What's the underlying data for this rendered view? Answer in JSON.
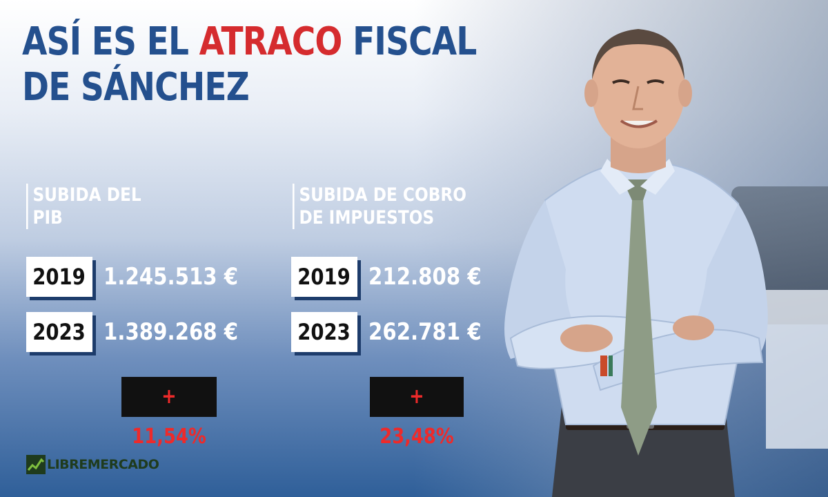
{
  "headline": {
    "part1": "ASÍ ES EL ",
    "highlight": "ATRACO",
    "part2": " FISCAL",
    "line2": "DE SÁNCHEZ",
    "color": "#24508e",
    "highlight_color": "#d52b2e"
  },
  "gdp": {
    "label_line1": "SUBIDA DEL",
    "label_line2": "PIB",
    "rows": [
      {
        "year": "2019",
        "value": "1.245.513 €"
      },
      {
        "year": "2023",
        "value": "1.389.268 €"
      }
    ],
    "change": "+ 11,54%"
  },
  "taxes": {
    "label_line1": "SUBIDA DE COBRO",
    "label_line2": "DE IMPUESTOS",
    "rows": [
      {
        "year": "2019",
        "value": "212.808 €"
      },
      {
        "year": "2023",
        "value": "262.781 €"
      }
    ],
    "change": "+ 23,48%"
  },
  "brand": {
    "name": "LIBREMERCADO",
    "icon": "chart-trend-icon",
    "color": "#1f3b1d"
  },
  "photo": {
    "icon": "man-portrait-illustration"
  }
}
